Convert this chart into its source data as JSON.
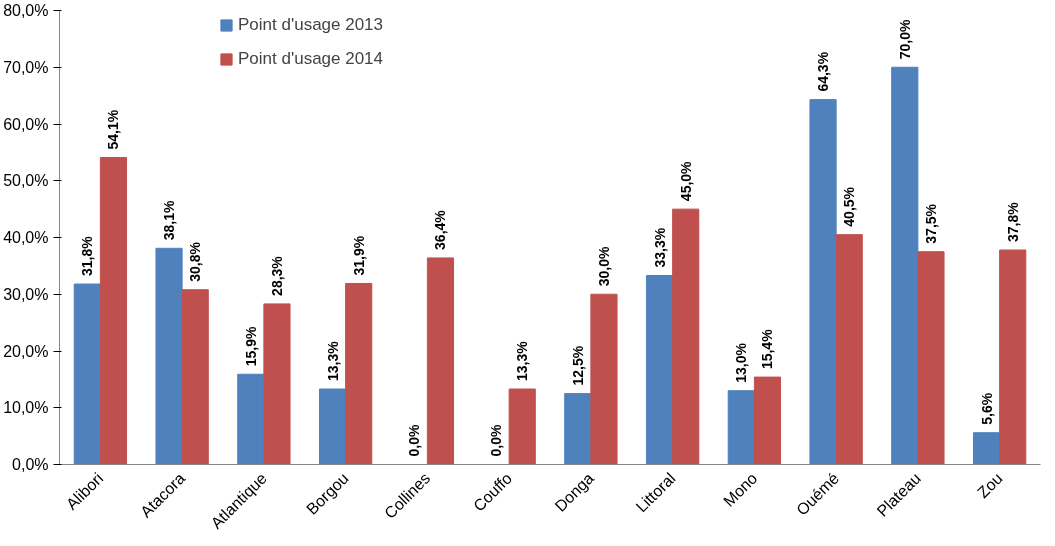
{
  "chart_data": {
    "type": "bar",
    "categories": [
      "Alibori",
      "Atacora",
      "Atlantique",
      "Borgou",
      "Collines",
      "Couffo",
      "Donga",
      "Littoral",
      "Mono",
      "Ouémé",
      "Plateau",
      "Zou"
    ],
    "series": [
      {
        "name": "Point d'usage 2013",
        "color": "#4f81bd",
        "values": [
          31.8,
          38.1,
          15.9,
          13.3,
          0.0,
          0.0,
          12.5,
          33.3,
          13.0,
          64.3,
          70.0,
          5.6
        ],
        "value_labels": [
          "31,8%",
          "38,1%",
          "15,9%",
          "13,3%",
          "0,0%",
          "0,0%",
          "12,5%",
          "33,3%",
          "13,0%",
          "64,3%",
          "70,0%",
          "5,6%"
        ]
      },
      {
        "name": "Point d'usage 2014",
        "color": "#c0504d",
        "values": [
          54.1,
          30.8,
          28.3,
          31.9,
          36.4,
          13.3,
          30.0,
          45.0,
          15.4,
          40.5,
          37.5,
          37.8
        ],
        "value_labels": [
          "54,1%",
          "30,8%",
          "28,3%",
          "31,9%",
          "36,4%",
          "13,3%",
          "30,0%",
          "45,0%",
          "15,4%",
          "40,5%",
          "37,5%",
          "37,8%"
        ]
      }
    ],
    "ylim": [
      0,
      80
    ],
    "yticks": [
      {
        "value": 0,
        "label": "0,0%"
      },
      {
        "value": 10,
        "label": "10,0%"
      },
      {
        "value": 20,
        "label": "20,0%"
      },
      {
        "value": 30,
        "label": "30,0%"
      },
      {
        "value": 40,
        "label": "40,0%"
      },
      {
        "value": 50,
        "label": "50,0%"
      },
      {
        "value": 60,
        "label": "60,0%"
      },
      {
        "value": 70,
        "label": "70,0%"
      },
      {
        "value": 80,
        "label": "80,0%"
      }
    ],
    "grid": false,
    "legend": "top"
  }
}
